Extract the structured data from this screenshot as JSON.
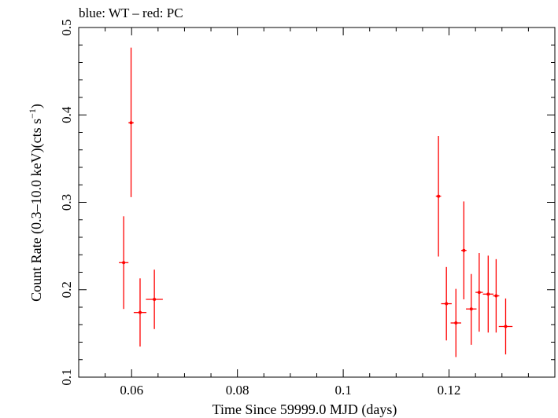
{
  "chart_data": {
    "type": "scatter",
    "title": "blue: WT – red: PC",
    "xlabel": "Time Since 59999.0 MJD (days)",
    "ylabel": "Count Rate (0.3–10.0 keV)(cts s",
    "ylabel_sup": "−1",
    "ylabel_close": ")",
    "xlim": [
      0.05,
      0.14
    ],
    "ylim": [
      0.1,
      0.5
    ],
    "x_ticks": [
      0.06,
      0.08,
      0.1,
      0.12
    ],
    "x_tick_labels": [
      "0.06",
      "0.08",
      "0.1",
      "0.12"
    ],
    "y_ticks": [
      0.1,
      0.2,
      0.3,
      0.4,
      0.5
    ],
    "y_tick_labels": [
      "0.1",
      "0.2",
      "0.3",
      "0.4",
      "0.5"
    ],
    "grid": false,
    "series": [
      {
        "color": "#ff0000",
        "points": [
          {
            "x": 0.0585,
            "xerr": 0.0009,
            "y": 0.231,
            "yerr_lo": 0.053,
            "yerr_hi": 0.053
          },
          {
            "x": 0.0599,
            "xerr": 0.0005,
            "y": 0.391,
            "yerr_lo": 0.085,
            "yerr_hi": 0.086
          },
          {
            "x": 0.0616,
            "xerr": 0.0012,
            "y": 0.174,
            "yerr_lo": 0.039,
            "yerr_hi": 0.039
          },
          {
            "x": 0.0643,
            "xerr": 0.0016,
            "y": 0.189,
            "yerr_lo": 0.034,
            "yerr_hi": 0.034
          },
          {
            "x": 0.118,
            "xerr": 0.0005,
            "y": 0.307,
            "yerr_lo": 0.069,
            "yerr_hi": 0.069
          },
          {
            "x": 0.1195,
            "xerr": 0.001,
            "y": 0.184,
            "yerr_lo": 0.042,
            "yerr_hi": 0.042
          },
          {
            "x": 0.1213,
            "xerr": 0.001,
            "y": 0.162,
            "yerr_lo": 0.039,
            "yerr_hi": 0.039
          },
          {
            "x": 0.1228,
            "xerr": 0.0005,
            "y": 0.245,
            "yerr_lo": 0.056,
            "yerr_hi": 0.056
          },
          {
            "x": 0.1242,
            "xerr": 0.001,
            "y": 0.178,
            "yerr_lo": 0.041,
            "yerr_hi": 0.04
          },
          {
            "x": 0.1257,
            "xerr": 0.0007,
            "y": 0.197,
            "yerr_lo": 0.045,
            "yerr_hi": 0.045
          },
          {
            "x": 0.1274,
            "xerr": 0.001,
            "y": 0.195,
            "yerr_lo": 0.044,
            "yerr_hi": 0.044
          },
          {
            "x": 0.1289,
            "xerr": 0.0006,
            "y": 0.193,
            "yerr_lo": 0.042,
            "yerr_hi": 0.042
          },
          {
            "x": 0.1307,
            "xerr": 0.0013,
            "y": 0.158,
            "yerr_lo": 0.032,
            "yerr_hi": 0.032
          }
        ]
      }
    ]
  }
}
